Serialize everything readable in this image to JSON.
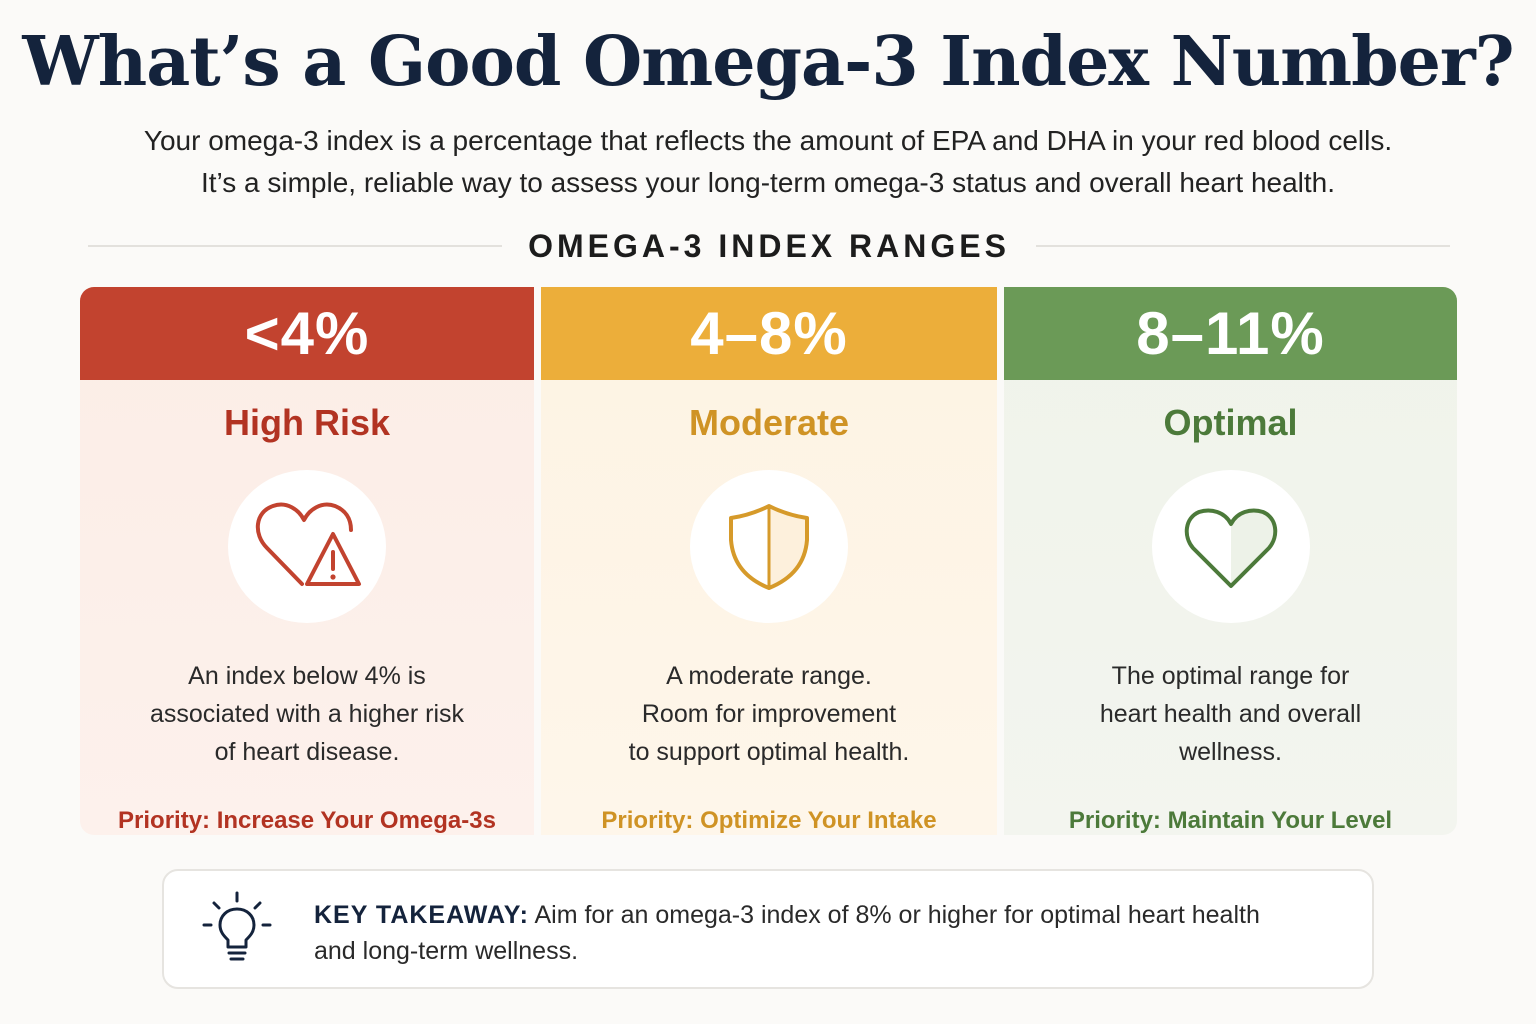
{
  "title": "What’s a Good Omega-3 Index Number?",
  "intro": {
    "line1": "Your omega-3 index is a percentage that reflects the amount of EPA and DHA in your red blood cells.",
    "line2": "It’s a simple, reliable way to assess your long-term omega-3 status and overall heart health."
  },
  "section_title": "OMEGA-3 INDEX RANGES",
  "colors": {
    "high_risk": "#c2432f",
    "moderate": "#ecae3a",
    "optimal": "#6b9a57",
    "title": "#14233c"
  },
  "ranges": [
    {
      "range": "<4%",
      "label": "High Risk",
      "icon": "heart-warning-icon",
      "desc_lines": [
        "An index below 4% is",
        "associated with a higher risk",
        "of heart disease."
      ],
      "priority": "Priority: Increase Your Omega-3s"
    },
    {
      "range": "4–8%",
      "label": "Moderate",
      "icon": "shield-icon",
      "desc_lines": [
        "A moderate range.",
        "Room for improvement",
        "to support optimal health."
      ],
      "priority": "Priority: Optimize Your Intake"
    },
    {
      "range": "8–11%",
      "label": "Optimal",
      "icon": "heart-icon",
      "desc_lines": [
        "The optimal range for",
        "heart health and overall",
        "wellness."
      ],
      "priority": "Priority: Maintain Your Level"
    }
  ],
  "takeaway": {
    "icon": "lightbulb-icon",
    "key": "KEY TAKEAWAY:",
    "line1": " Aim for an omega-3 index of 8% or higher for optimal heart health",
    "line2": "and long-term wellness."
  }
}
